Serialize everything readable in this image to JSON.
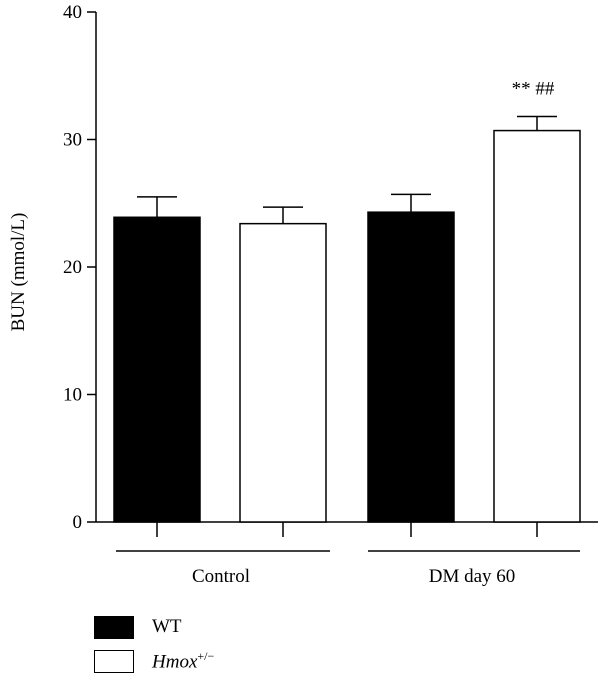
{
  "chart_data": {
    "type": "bar",
    "ylabel": "BUN (mmol/L)",
    "ylim": [
      0,
      40
    ],
    "yticks": [
      "0",
      "10",
      "20",
      "30",
      "40"
    ],
    "groups": [
      "Control",
      "DM day 60"
    ],
    "series": [
      {
        "name": "WT",
        "color": "#000000",
        "values": [
          23.9,
          24.3
        ],
        "errors": [
          1.6,
          1.4
        ]
      },
      {
        "name": "Hmox+/-",
        "color": "#ffffff",
        "values": [
          23.4,
          30.7
        ],
        "errors": [
          1.3,
          1.1
        ]
      }
    ],
    "annotations": [
      {
        "series": 1,
        "group": 1,
        "text": "** ##"
      }
    ],
    "legend_position": "bottom-left",
    "grid": false
  },
  "legend": {
    "wt_label": "WT",
    "hmox_label_main": "Hmox",
    "hmox_label_sup": "+/−"
  }
}
